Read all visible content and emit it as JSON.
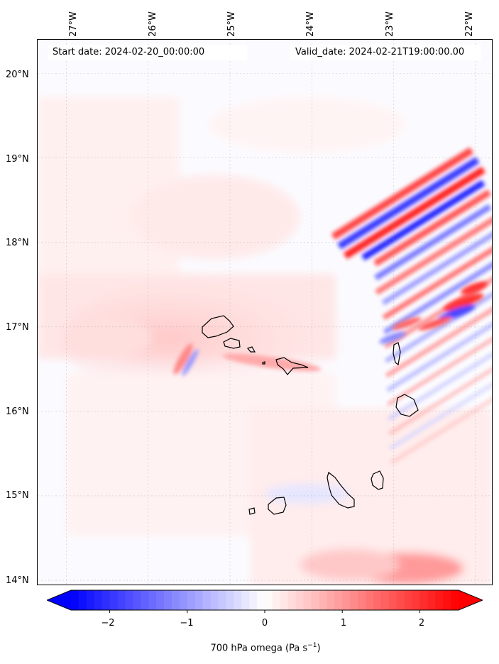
{
  "header": {
    "start_date": "Start date: 2024-02-20_00:00:00",
    "valid_date": "Valid_date: 2024-02-21T19:00:00.00"
  },
  "axes": {
    "longitude_labels": [
      "27°W",
      "26°W",
      "25°W",
      "24°W",
      "23°W",
      "22°W"
    ],
    "latitude_labels": [
      "20°N",
      "19°N",
      "18°N",
      "17°N",
      "16°N",
      "15°N",
      "14°N"
    ],
    "lon_range": [
      -27.35,
      -21.8
    ],
    "lat_range": [
      13.95,
      20.4
    ],
    "gridlines": true
  },
  "colorbar": {
    "ticks": [
      "−2",
      "−1",
      "0",
      "1",
      "2"
    ],
    "tick_values": [
      -2,
      -1,
      0,
      1,
      2
    ],
    "range": [
      -2.5,
      2.5
    ],
    "label_main": "700 hPa omega (Pa s",
    "label_sup": "−1",
    "label_close": ")",
    "colors": {
      "negative": "#0000ff",
      "zero": "#ffffff",
      "positive": "#ff0000"
    },
    "extend": "both"
  },
  "islands": [
    "Santo Antão",
    "São Vicente",
    "Santa Luzia",
    "São Nicolau",
    "Sal",
    "Boa Vista",
    "Maio",
    "Santiago",
    "Fogo",
    "Brava"
  ]
}
